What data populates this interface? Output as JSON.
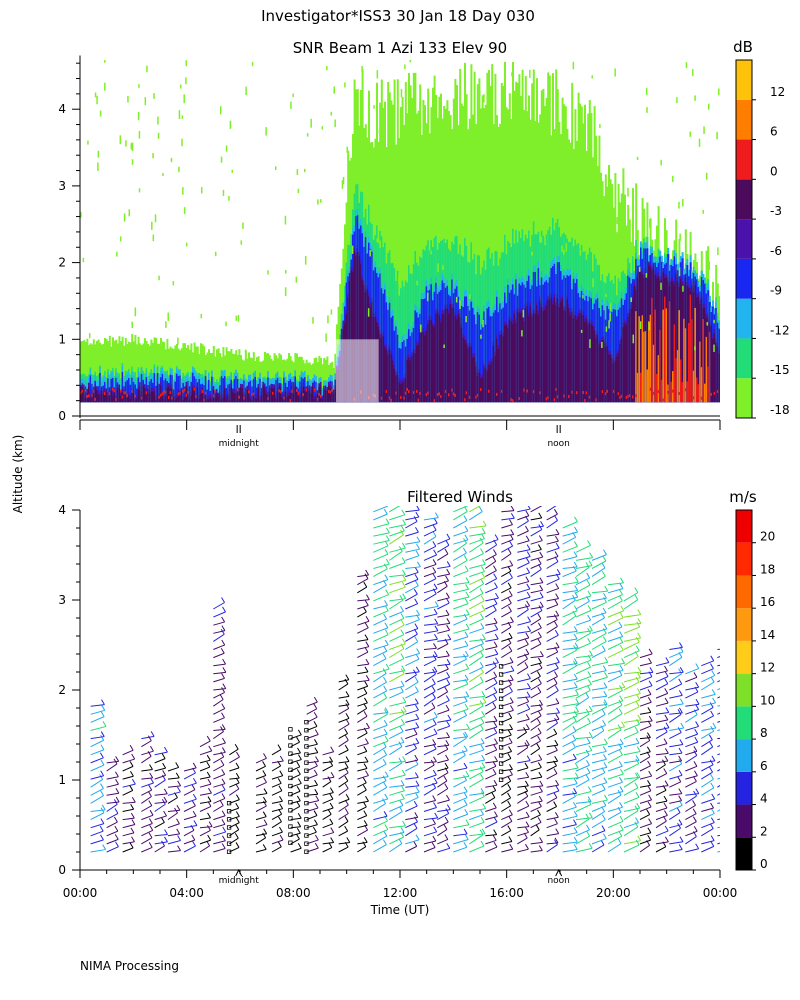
{
  "header": {
    "title": "Investigator*ISS3  30 Jan 18 Day 030",
    "footer": "NIMA Processing"
  },
  "chart_data": [
    {
      "type": "heatmap",
      "title": "SNR Beam 1 Azi 133 Elev 90",
      "ylabel": "Altitude (km)",
      "ylim": [
        0,
        4.7
      ],
      "y_ticks": [
        "0",
        "1",
        "2",
        "3",
        "4"
      ],
      "x_marker_labels": [
        "midnight",
        "noon"
      ],
      "colorbar": {
        "unit": "dB",
        "ticks": [
          "12",
          "6",
          "0",
          "-3",
          "-6",
          "-9",
          "-12",
          "-15",
          "-18"
        ],
        "bins": [
          {
            "from": -18,
            "to": -15,
            "color": "#7fef2a"
          },
          {
            "from": -15,
            "to": -12,
            "color": "#22dd77"
          },
          {
            "from": -12,
            "to": -9,
            "color": "#22b4ee"
          },
          {
            "from": -9,
            "to": -6,
            "color": "#1828f0"
          },
          {
            "from": -6,
            "to": -3,
            "color": "#4a12aa"
          },
          {
            "from": -3,
            "to": 0,
            "color": "#4c0a5c"
          },
          {
            "from": 0,
            "to": 6,
            "color": "#ee1c1c"
          },
          {
            "from": 6,
            "to": 12,
            "color": "#ff7e00"
          },
          {
            "from": 12,
            "to": 16,
            "color": "#ffc20a"
          }
        ]
      },
      "profiles_top_km": {
        "time_h": [
          0,
          2,
          4,
          6,
          8,
          9.5,
          10.3,
          11,
          12,
          13,
          14,
          15,
          16,
          17,
          18,
          19,
          20,
          21,
          22,
          23,
          24
        ],
        "top_green": [
          0.95,
          1.0,
          0.9,
          0.8,
          0.75,
          0.7,
          4.3,
          3.9,
          4.0,
          4.1,
          4.2,
          4.1,
          4.2,
          4.3,
          4.0,
          3.8,
          2.9,
          2.5,
          2.2,
          2.0,
          1.6
        ],
        "top_blue": [
          0.45,
          0.45,
          0.45,
          0.4,
          0.4,
          0.35,
          2.6,
          2.0,
          0.9,
          1.6,
          1.7,
          1.2,
          1.6,
          1.8,
          1.9,
          1.5,
          1.3,
          2.1,
          2.0,
          1.9,
          1.2
        ],
        "top_purple": [
          0.3,
          0.3,
          0.3,
          0.3,
          0.3,
          0.3,
          2.2,
          1.3,
          0.45,
          1.2,
          1.4,
          0.5,
          1.2,
          1.4,
          1.5,
          1.2,
          0.7,
          1.9,
          1.8,
          1.7,
          0.8
        ]
      }
    },
    {
      "type": "scatter",
      "title": "Filtered Winds",
      "xlabel": "Time (UT)",
      "ylabel": "Altitude (km)",
      "xlim": [
        0,
        24
      ],
      "ylim": [
        0,
        4
      ],
      "x_ticks": [
        "00:00",
        "04:00",
        "08:00",
        "12:00",
        "16:00",
        "20:00",
        "00:00"
      ],
      "y_ticks": [
        "0",
        "1",
        "2",
        "3",
        "4"
      ],
      "x_marker_labels": [
        "midnight",
        "noon"
      ],
      "colorbar": {
        "unit": "m/s",
        "ticks": [
          "0",
          "2",
          "4",
          "6",
          "8",
          "10",
          "12",
          "14",
          "16",
          "18",
          "20"
        ],
        "bins": [
          {
            "from": 0,
            "to": 2,
            "color": "#000000"
          },
          {
            "from": 2,
            "to": 4,
            "color": "#4a0a6a"
          },
          {
            "from": 4,
            "to": 6,
            "color": "#2424e0"
          },
          {
            "from": 6,
            "to": 8,
            "color": "#22aaee"
          },
          {
            "from": 8,
            "to": 10,
            "color": "#22dd77"
          },
          {
            "from": 10,
            "to": 12,
            "color": "#7fe02a"
          },
          {
            "from": 12,
            "to": 14,
            "color": "#ffcc1a"
          },
          {
            "from": 14,
            "to": 16,
            "color": "#ff9a10"
          },
          {
            "from": 16,
            "to": 18,
            "color": "#ff6a00"
          },
          {
            "from": 18,
            "to": 20,
            "color": "#ff2a00"
          },
          {
            "from": 20,
            "to": 22,
            "color": "#ee0000"
          }
        ]
      },
      "wind_profiles": {
        "time_h": [
          0.4,
          1.0,
          1.6,
          2.3,
          2.8,
          3.3,
          3.9,
          4.5,
          5.0,
          5.6,
          6.6,
          7.2,
          7.9,
          8.5,
          9.1,
          9.7,
          10.4,
          11.0,
          11.6,
          12.2,
          12.9,
          13.4,
          14.0,
          14.6,
          15.2,
          15.8,
          16.4,
          16.9,
          17.5,
          18.1,
          18.6,
          19.2,
          19.8,
          20.4,
          21.0,
          21.6,
          22.1,
          22.7,
          23.3,
          23.9
        ],
        "top_km": [
          1.9,
          1.2,
          1.3,
          1.5,
          1.3,
          1.1,
          1.1,
          1.4,
          2.9,
          1.3,
          1.2,
          1.3,
          1.5,
          1.9,
          1.3,
          2.1,
          3.3,
          4.0,
          4.0,
          4.0,
          3.9,
          3.7,
          4.0,
          4.1,
          3.7,
          4.0,
          4.0,
          4.0,
          4.0,
          3.8,
          3.6,
          3.5,
          3.2,
          3.0,
          2.4,
          2.3,
          2.5,
          2.2,
          2.3,
          2.5
        ],
        "speed_ms": [
          6,
          3,
          3,
          3,
          3,
          3,
          3,
          2,
          3,
          1,
          1,
          1,
          1,
          2,
          1,
          1,
          1,
          7,
          8,
          5,
          4,
          3,
          7,
          8,
          3,
          2,
          3,
          2,
          3,
          7,
          8,
          7,
          8,
          9,
          2,
          3,
          5,
          4,
          5,
          5
        ]
      }
    }
  ]
}
